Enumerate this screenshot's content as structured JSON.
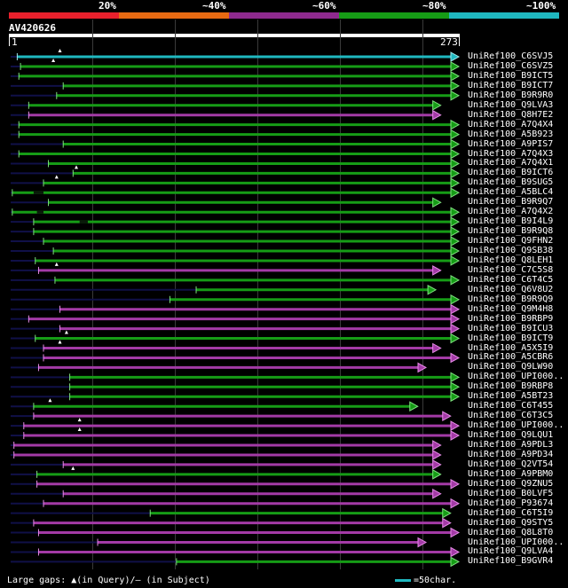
{
  "legend": {
    "labels": [
      "20%",
      "~40%",
      "~60%",
      "~80%",
      "~100%"
    ],
    "colors": [
      "#e8202c",
      "#e86a12",
      "#8e2a8e",
      "#169c16",
      "#1fb8c0"
    ]
  },
  "query": {
    "name": "AV420626",
    "start_label": "1",
    "end_label": "273"
  },
  "colors": {
    "cyan": "#1fb8c0",
    "green": "#169c16",
    "magenta": "#a33aa6",
    "gap": "#101048",
    "pale_green": "#7ee07e",
    "pale_magenta": "#e78be8",
    "pale_cyan": "#9fe6ea"
  },
  "hits": [
    {
      "name": "UniRef100_C6SVJ5",
      "color": "cyan",
      "start": 4,
      "end": 273,
      "gap_start": 0,
      "gap_end": 4,
      "query_gap": 30
    },
    {
      "name": "UniRef100_C6SVZ5",
      "color": "green",
      "start": 6,
      "end": 273,
      "gap_start": 0,
      "gap_end": 6,
      "query_gap": 26
    },
    {
      "name": "UniRef100_B9ICT5",
      "color": "green",
      "start": 5,
      "end": 273,
      "gap_start": 0,
      "gap_end": 5,
      "query_gap": null
    },
    {
      "name": "UniRef100_B9ICT7",
      "color": "green",
      "start": 32,
      "end": 273,
      "gap_start": 0,
      "gap_end": 32,
      "query_gap": null
    },
    {
      "name": "UniRef100_B9R9R0",
      "color": "green",
      "start": 28,
      "end": 273,
      "gap_start": 0,
      "gap_end": 28,
      "query_gap": null
    },
    {
      "name": "UniRef100_Q9LVA3",
      "color": "green",
      "start": 11,
      "end": 262,
      "gap_start": 0,
      "gap_end": 11,
      "query_gap": null
    },
    {
      "name": "UniRef100_Q8H7E2",
      "color": "magenta",
      "start": 11,
      "end": 262,
      "gap_start": 0,
      "gap_end": 11,
      "query_gap": null
    },
    {
      "name": "UniRef100_A7Q4X4",
      "color": "green",
      "start": 5,
      "end": 273,
      "gap_start": 0,
      "gap_end": 5,
      "query_gap": null
    },
    {
      "name": "UniRef100_A5B923",
      "color": "green",
      "start": 5,
      "end": 273,
      "gap_start": 0,
      "gap_end": 5,
      "query_gap": null
    },
    {
      "name": "UniRef100_A9PIS7",
      "color": "green",
      "start": 32,
      "end": 273,
      "gap_start": 0,
      "gap_end": 32,
      "query_gap": null
    },
    {
      "name": "UniRef100_A7Q4X3",
      "color": "green",
      "start": 5,
      "end": 273,
      "gap_start": 0,
      "gap_end": 5,
      "query_gap": null
    },
    {
      "name": "UniRef100_A7Q4X1",
      "color": "green",
      "start": 23,
      "end": 273,
      "gap_start": 0,
      "gap_end": 23,
      "query_gap": null
    },
    {
      "name": "UniRef100_B9ICT6",
      "color": "green",
      "start": 38,
      "end": 273,
      "gap_start": 0,
      "gap_end": 38,
      "query_gap": 40
    },
    {
      "name": "UniRef100_B9SUG5",
      "color": "green",
      "start": 20,
      "end": 273,
      "gap_start": 0,
      "gap_end": 20,
      "query_gap": 28
    },
    {
      "name": "UniRef100_A5BLC4",
      "color": "green",
      "start": 1,
      "end": 273,
      "gap_start": 14,
      "gap_end": 20,
      "query_gap": null
    },
    {
      "name": "UniRef100_B9R9Q7",
      "color": "green",
      "start": 23,
      "end": 262,
      "gap_start": 0,
      "gap_end": 23,
      "query_gap": null
    },
    {
      "name": "UniRef100_A7Q4X2",
      "color": "green",
      "start": 1,
      "end": 273,
      "gap_start": 16,
      "gap_end": 20,
      "query_gap": null
    },
    {
      "name": "UniRef100_B9I4L9",
      "color": "green",
      "start": 14,
      "end": 273,
      "gap_start": 42,
      "gap_end": 47,
      "query_gap": null
    },
    {
      "name": "UniRef100_B9R9Q8",
      "color": "green",
      "start": 14,
      "end": 273,
      "gap_start": 0,
      "gap_end": 14,
      "query_gap": null
    },
    {
      "name": "UniRef100_Q9FHN2",
      "color": "green",
      "start": 20,
      "end": 273,
      "gap_start": 0,
      "gap_end": 20,
      "query_gap": null
    },
    {
      "name": "UniRef100_Q9SB38",
      "color": "green",
      "start": 26,
      "end": 273,
      "gap_start": 0,
      "gap_end": 26,
      "query_gap": null
    },
    {
      "name": "UniRef100_Q8LEH1",
      "color": "green",
      "start": 15,
      "end": 273,
      "gap_start": 0,
      "gap_end": 15,
      "query_gap": null
    },
    {
      "name": "UniRef100_C7C5S8",
      "color": "magenta",
      "start": 17,
      "end": 262,
      "gap_start": 0,
      "gap_end": 17,
      "query_gap": 28
    },
    {
      "name": "UniRef100_C6T4C5",
      "color": "green",
      "start": 27,
      "end": 273,
      "gap_start": 0,
      "gap_end": 27,
      "query_gap": null
    },
    {
      "name": "UniRef100_Q6V8U2",
      "color": "green",
      "start": 113,
      "end": 259,
      "gap_start": 0,
      "gap_end": 113,
      "query_gap": null
    },
    {
      "name": "UniRef100_B9R9Q9",
      "color": "green",
      "start": 97,
      "end": 273,
      "gap_start": 0,
      "gap_end": 97,
      "query_gap": null
    },
    {
      "name": "UniRef100_Q9M4H8",
      "color": "magenta",
      "start": 30,
      "end": 273,
      "gap_start": 0,
      "gap_end": 30,
      "query_gap": null
    },
    {
      "name": "UniRef100_B9RBP9",
      "color": "magenta",
      "start": 11,
      "end": 273,
      "gap_start": 0,
      "gap_end": 11,
      "query_gap": null
    },
    {
      "name": "UniRef100_B9ICU3",
      "color": "magenta",
      "start": 30,
      "end": 273,
      "gap_start": 0,
      "gap_end": 30,
      "query_gap": null
    },
    {
      "name": "UniRef100_B9ICT9",
      "color": "green",
      "start": 15,
      "end": 273,
      "gap_start": 0,
      "gap_end": 15,
      "query_gap": 34
    },
    {
      "name": "UniRef100_A5X5I9",
      "color": "magenta",
      "start": 20,
      "end": 262,
      "gap_start": 0,
      "gap_end": 20,
      "query_gap": 30
    },
    {
      "name": "UniRef100_A5CBR6",
      "color": "magenta",
      "start": 20,
      "end": 273,
      "gap_start": 0,
      "gap_end": 20,
      "query_gap": null
    },
    {
      "name": "UniRef100_Q9LW90",
      "color": "magenta",
      "start": 17,
      "end": 253,
      "gap_start": 0,
      "gap_end": 17,
      "query_gap": null
    },
    {
      "name": "UniRef100_UPI000..",
      "color": "green",
      "start": 36,
      "end": 273,
      "gap_start": 0,
      "gap_end": 36,
      "query_gap": null
    },
    {
      "name": "UniRef100_B9RBP8",
      "color": "green",
      "start": 36,
      "end": 273,
      "gap_start": 0,
      "gap_end": 36,
      "query_gap": null
    },
    {
      "name": "UniRef100_A5BT23",
      "color": "green",
      "start": 36,
      "end": 273,
      "gap_start": 0,
      "gap_end": 36,
      "query_gap": null
    },
    {
      "name": "UniRef100_C6T455",
      "color": "green",
      "start": 14,
      "end": 248,
      "gap_start": 0,
      "gap_end": 14,
      "query_gap": 24
    },
    {
      "name": "UniRef100_C6T3C5",
      "color": "magenta",
      "start": 14,
      "end": 268,
      "gap_start": 0,
      "gap_end": 14,
      "query_gap": null
    },
    {
      "name": "UniRef100_UPI000..",
      "color": "magenta",
      "start": 8,
      "end": 273,
      "gap_start": 0,
      "gap_end": 8,
      "query_gap": 42
    },
    {
      "name": "UniRef100_Q9LQU1",
      "color": "magenta",
      "start": 8,
      "end": 273,
      "gap_start": 0,
      "gap_end": 8,
      "query_gap": 42
    },
    {
      "name": "UniRef100_A9PDL3",
      "color": "magenta",
      "start": 2,
      "end": 262,
      "gap_start": 0,
      "gap_end": 2,
      "query_gap": null
    },
    {
      "name": "UniRef100_A9PD34",
      "color": "magenta",
      "start": 2,
      "end": 262,
      "gap_start": 0,
      "gap_end": 2,
      "query_gap": null
    },
    {
      "name": "UniRef100_Q2VT54",
      "color": "magenta",
      "start": 32,
      "end": 262,
      "gap_start": 0,
      "gap_end": 32,
      "query_gap": null
    },
    {
      "name": "UniRef100_A9PBM0",
      "color": "green",
      "start": 16,
      "end": 262,
      "gap_start": 0,
      "gap_end": 16,
      "query_gap": 38
    },
    {
      "name": "UniRef100_Q9ZNU5",
      "color": "magenta",
      "start": 16,
      "end": 273,
      "gap_start": 0,
      "gap_end": 16,
      "query_gap": null
    },
    {
      "name": "UniRef100_B0LVF5",
      "color": "magenta",
      "start": 32,
      "end": 262,
      "gap_start": 0,
      "gap_end": 32,
      "query_gap": null
    },
    {
      "name": "UniRef100_P93674",
      "color": "magenta",
      "start": 20,
      "end": 273,
      "gap_start": 0,
      "gap_end": 20,
      "query_gap": null
    },
    {
      "name": "UniRef100_C6T5I9",
      "color": "green",
      "start": 85,
      "end": 268,
      "gap_start": 0,
      "gap_end": 85,
      "query_gap": null
    },
    {
      "name": "UniRef100_Q9STY5",
      "color": "magenta",
      "start": 14,
      "end": 268,
      "gap_start": 0,
      "gap_end": 14,
      "query_gap": null
    },
    {
      "name": "UniRef100_Q8L8T0",
      "color": "magenta",
      "start": 17,
      "end": 273,
      "gap_start": 0,
      "gap_end": 17,
      "query_gap": null
    },
    {
      "name": "UniRef100_UPI000..",
      "color": "magenta",
      "start": 53,
      "end": 253,
      "gap_start": 0,
      "gap_end": 53,
      "query_gap": null
    },
    {
      "name": "UniRef100_Q9LVA4",
      "color": "magenta",
      "start": 17,
      "end": 273,
      "gap_start": 0,
      "gap_end": 17,
      "query_gap": null
    },
    {
      "name": "UniRef100_B9GVR4",
      "color": "green",
      "start": 101,
      "end": 273,
      "gap_start": 0,
      "gap_end": 101,
      "query_gap": null
    }
  ],
  "footer": {
    "legend_text_prefix": "Large gaps: ",
    "legend_query": "▲(in Query)/– (in Subject)",
    "scale_text": "=50char."
  }
}
